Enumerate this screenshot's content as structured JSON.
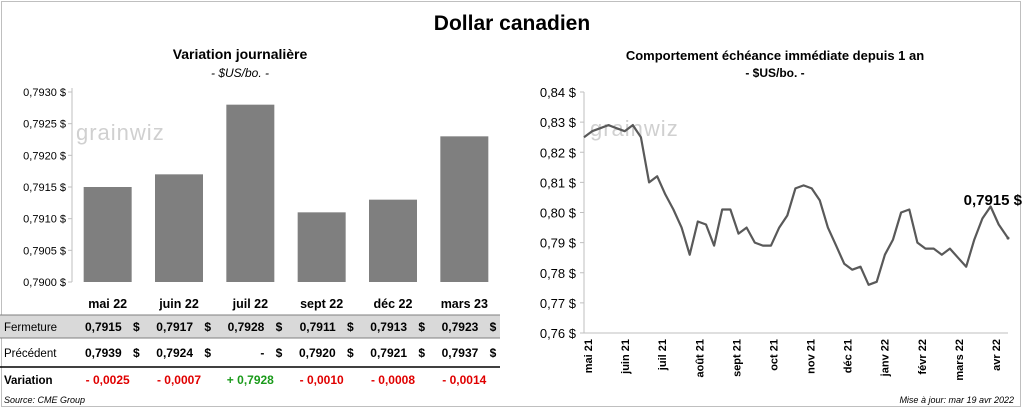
{
  "page": {
    "title": "Dollar canadien",
    "source": "Source: CME Group",
    "updated": "Mise à jour: mar 19 avr 2022",
    "watermark": "grainwiz"
  },
  "chart_data": [
    {
      "type": "bar",
      "title": "Variation  journalière",
      "subtitle": "- $US/bo. -",
      "categories": [
        "mai 22",
        "juin 22",
        "juil 22",
        "sept 22",
        "déc 22",
        "mars 23"
      ],
      "values": [
        0.7915,
        0.7917,
        0.7928,
        0.7911,
        0.7913,
        0.7923
      ],
      "ylim": [
        0.79,
        0.793
      ],
      "yticks": [
        "0,7930 $",
        "0,7925 $",
        "0,7920 $",
        "0,7915 $",
        "0,7910 $",
        "0,7905 $",
        "0,7900 $"
      ],
      "bar_color": "#7f7f7f",
      "table": {
        "rows": [
          {
            "label": "Fermeture",
            "values": [
              "0,7915",
              "0,7917",
              "0,7928",
              "0,7911",
              "0,7913",
              "0,7923"
            ],
            "unit": "$"
          },
          {
            "label": "Précédent",
            "values": [
              "0,7939",
              "0,7924",
              "-",
              "0,7920",
              "0,7921",
              "0,7937"
            ],
            "unit": "$"
          },
          {
            "label": "Variation",
            "values": [
              "- 0,0025",
              "- 0,0007",
              "+ 0,7928",
              "- 0,0010",
              "- 0,0008",
              "- 0,0014"
            ],
            "colors": [
              "#e00000",
              "#e00000",
              "#1a9a1a",
              "#e00000",
              "#e00000",
              "#e00000"
            ]
          }
        ]
      }
    },
    {
      "type": "line",
      "title": "Comportement échéance immédiate depuis 1 an",
      "subtitle": "- $US/bo. -",
      "ylim": [
        0.76,
        0.84
      ],
      "yticks": [
        "0,84 $",
        "0,83 $",
        "0,82 $",
        "0,81 $",
        "0,80 $",
        "0,79 $",
        "0,78 $",
        "0,77 $",
        "0,76 $"
      ],
      "xticks": [
        "mai 21",
        "juin 21",
        "juil 21",
        "août 21",
        "sept 21",
        "oct 21",
        "nov 21",
        "déc 21",
        "janv 22",
        "févr 22",
        "mars 22",
        "avr 22"
      ],
      "last_label": "0,7915 $",
      "line_color": "#595959",
      "x": [
        "2021-04-19",
        "2021-04-26",
        "2021-05-03",
        "2021-05-10",
        "2021-05-17",
        "2021-05-24",
        "2021-05-31",
        "2021-06-07",
        "2021-06-14",
        "2021-06-21",
        "2021-06-28",
        "2021-07-05",
        "2021-07-12",
        "2021-07-19",
        "2021-07-26",
        "2021-08-02",
        "2021-08-09",
        "2021-08-16",
        "2021-08-23",
        "2021-08-30",
        "2021-09-06",
        "2021-09-13",
        "2021-09-20",
        "2021-09-27",
        "2021-10-04",
        "2021-10-11",
        "2021-10-18",
        "2021-10-25",
        "2021-11-01",
        "2021-11-08",
        "2021-11-15",
        "2021-11-22",
        "2021-11-29",
        "2021-12-06",
        "2021-12-13",
        "2021-12-20",
        "2021-12-27",
        "2022-01-03",
        "2022-01-10",
        "2022-01-17",
        "2022-01-24",
        "2022-01-31",
        "2022-02-07",
        "2022-02-14",
        "2022-02-21",
        "2022-02-28",
        "2022-03-07",
        "2022-03-14",
        "2022-03-21",
        "2022-03-28",
        "2022-04-04",
        "2022-04-11",
        "2022-04-19"
      ],
      "y": [
        0.825,
        0.827,
        0.828,
        0.829,
        0.828,
        0.827,
        0.829,
        0.825,
        0.81,
        0.812,
        0.806,
        0.801,
        0.795,
        0.786,
        0.797,
        0.796,
        0.789,
        0.801,
        0.801,
        0.793,
        0.795,
        0.79,
        0.789,
        0.789,
        0.795,
        0.799,
        0.808,
        0.809,
        0.808,
        0.804,
        0.795,
        0.789,
        0.783,
        0.781,
        0.782,
        0.776,
        0.777,
        0.786,
        0.791,
        0.8,
        0.801,
        0.79,
        0.788,
        0.788,
        0.786,
        0.788,
        0.785,
        0.782,
        0.791,
        0.798,
        0.802,
        0.796,
        0.7915
      ]
    }
  ]
}
